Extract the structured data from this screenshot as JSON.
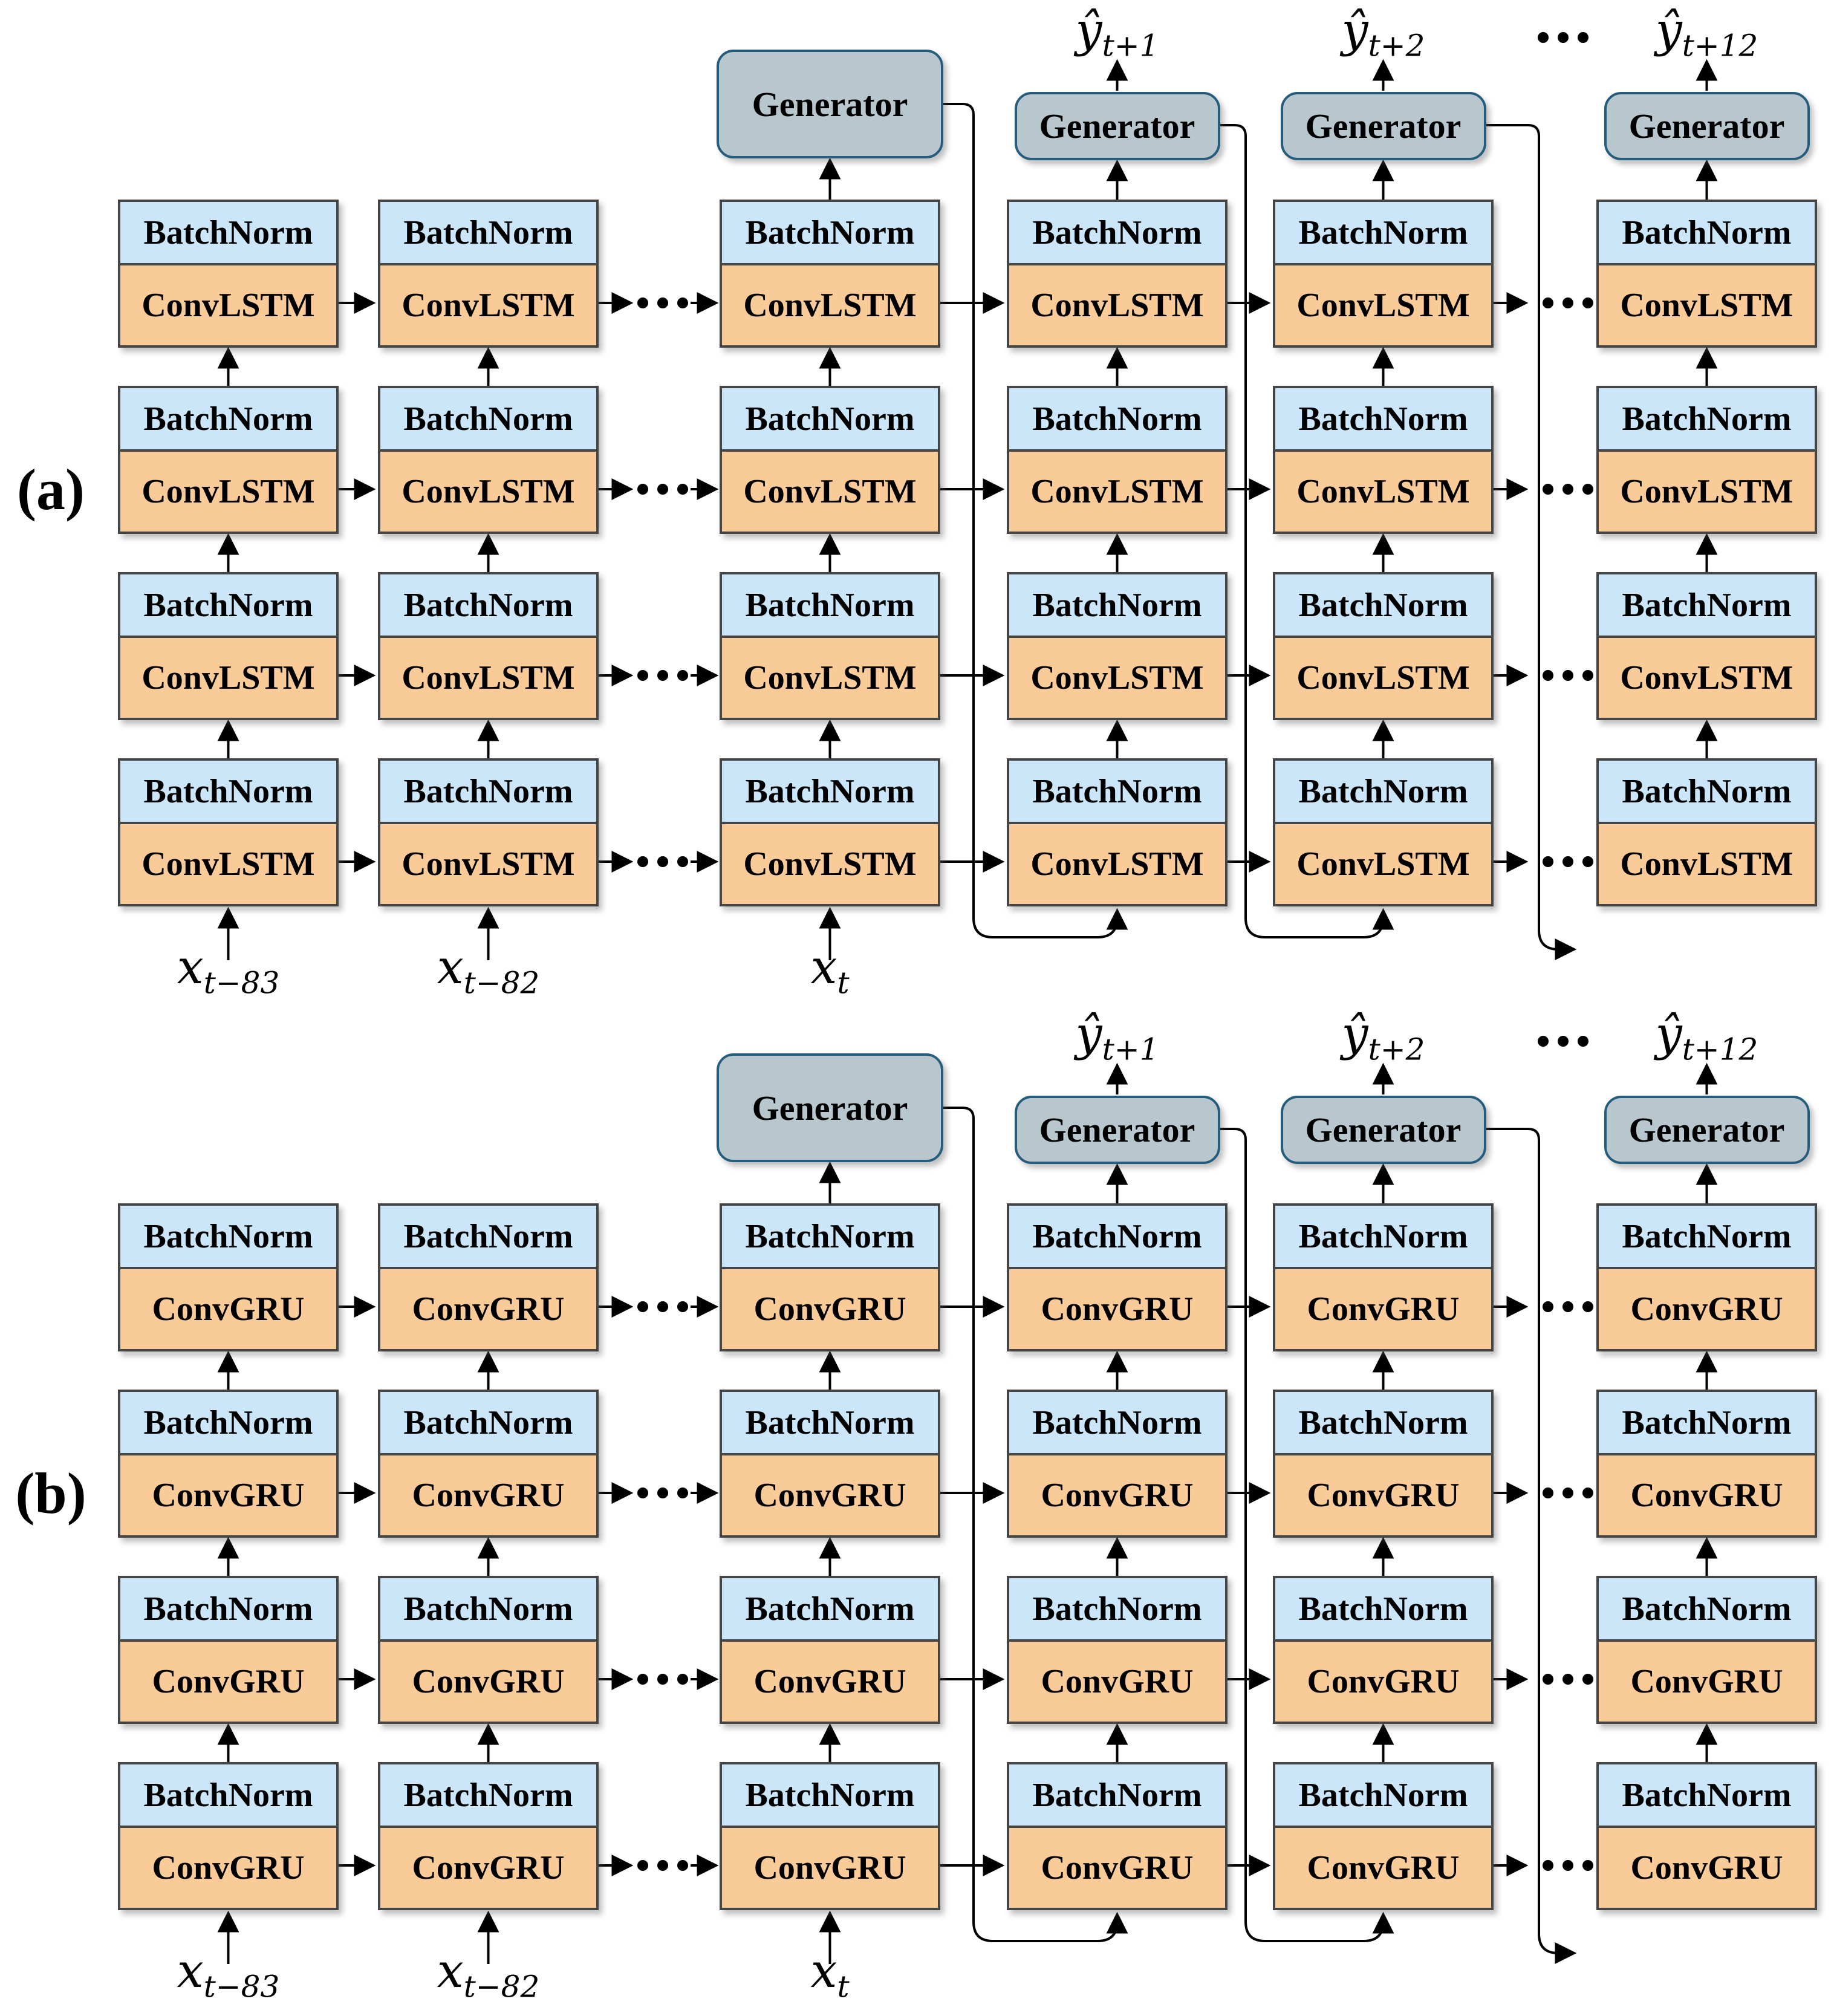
{
  "figure": {
    "panel_a_label": "(a)",
    "panel_b_label": "(b)"
  },
  "structure": {
    "stacked_layers": 4,
    "visible_columns": 6,
    "ellipsis": "..."
  },
  "panels": [
    {
      "label": "(a)",
      "batchnorm": "BatchNorm",
      "cell": "ConvLSTM",
      "generator": "Generator",
      "inputs": [
        {
          "base": "x",
          "sub": "t−83"
        },
        {
          "base": "x",
          "sub": "t−82"
        },
        {
          "base": "x",
          "sub": "t"
        }
      ],
      "outputs": [
        {
          "base": "ŷ",
          "sub": "t+1"
        },
        {
          "base": "ŷ",
          "sub": "t+2"
        },
        {
          "base": "ŷ",
          "sub": "t+12"
        }
      ]
    },
    {
      "label": "(b)",
      "batchnorm": "BatchNorm",
      "cell": "ConvGRU",
      "generator": "Generator",
      "inputs": [
        {
          "base": "x",
          "sub": "t−83"
        },
        {
          "base": "x",
          "sub": "t−82"
        },
        {
          "base": "x",
          "sub": "t"
        }
      ],
      "outputs": [
        {
          "base": "ŷ",
          "sub": "t+1"
        },
        {
          "base": "ŷ",
          "sub": "t+2"
        },
        {
          "base": "ŷ",
          "sub": "t+12"
        }
      ]
    }
  ],
  "colors": {
    "background": "#ffffff",
    "text": "#000000",
    "batchnorm_fill": "#cbe6f8",
    "cell_fill": "#f8cb98",
    "box_border": "#454545",
    "generator_fill": "#b8c7ce",
    "generator_border": "#255d7d",
    "arrow": "#000000"
  }
}
